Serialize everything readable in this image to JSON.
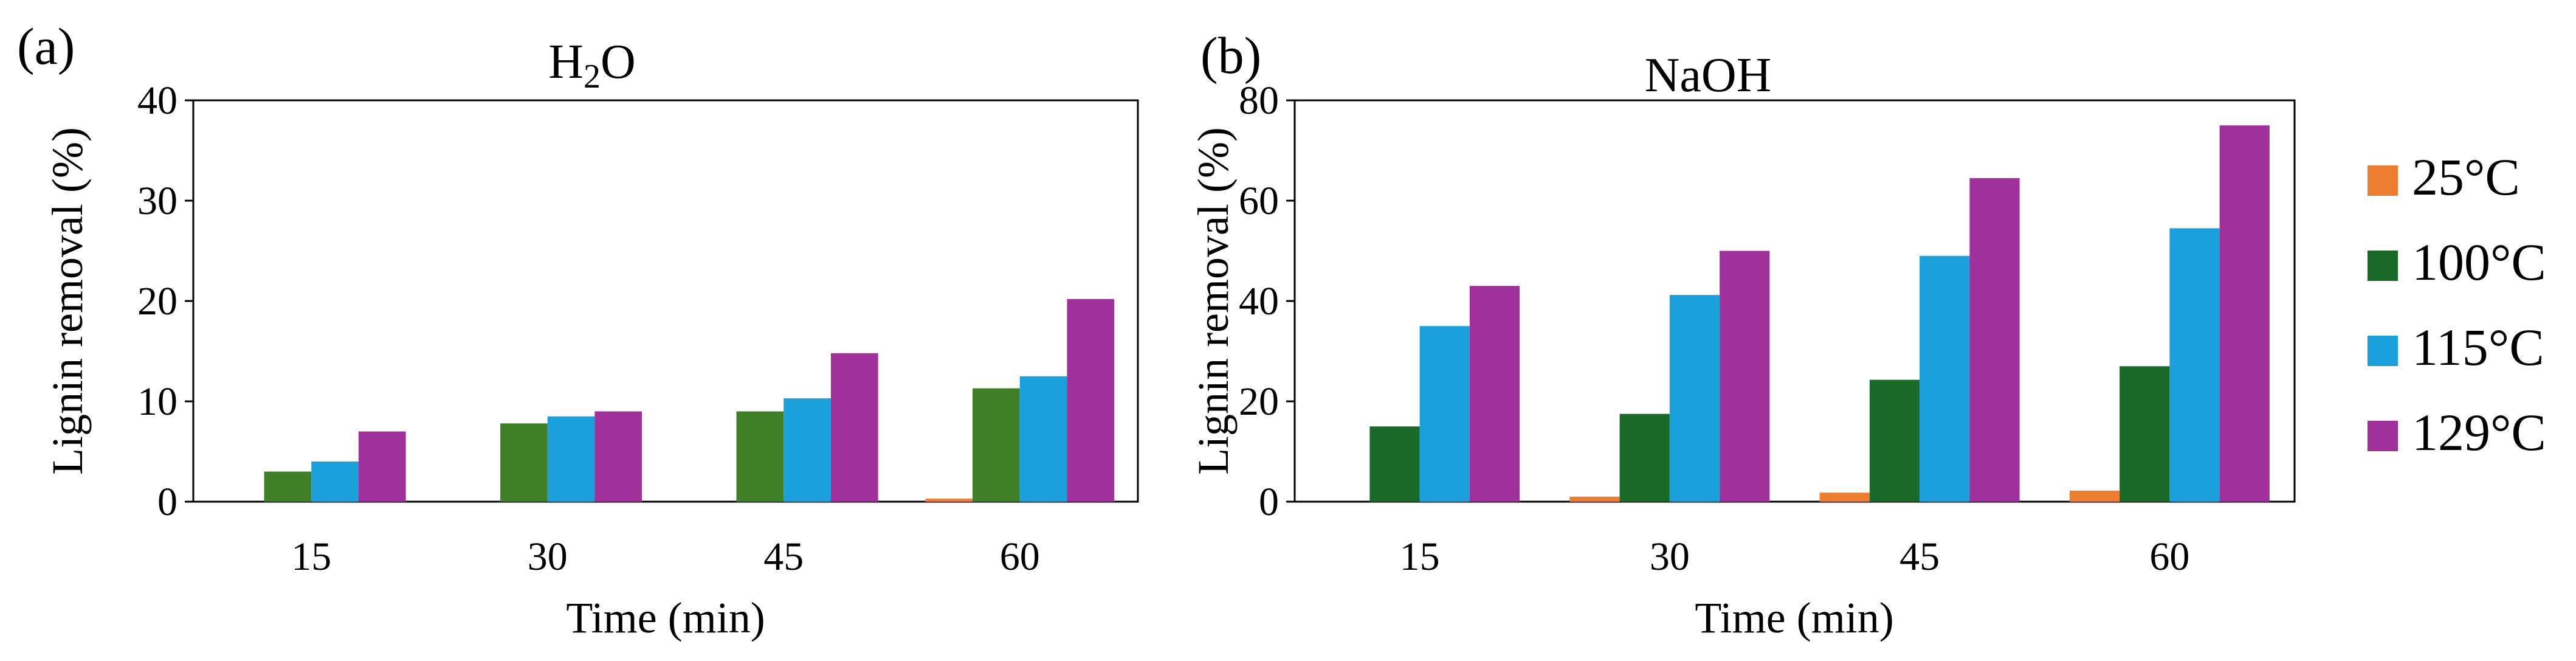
{
  "chart_data": [
    {
      "type": "bar",
      "panel_label": "(a)",
      "title_main": "H",
      "title_sub": "2",
      "title_tail": "O",
      "xlabel": "Time (min)",
      "ylabel": "Lignin removal  (%)",
      "ylim": [
        0,
        40
      ],
      "yticks": [
        "0",
        "10",
        "20",
        "30",
        "40"
      ],
      "categories": [
        "15",
        "30",
        "45",
        "60"
      ],
      "series": [
        {
          "name": "25°C",
          "color": "#ed7d31",
          "values": [
            0,
            0,
            0,
            0.3
          ]
        },
        {
          "name": "100°C",
          "color": "#3f7f25",
          "values": [
            3.0,
            7.8,
            9.0,
            11.3
          ]
        },
        {
          "name": "115°C",
          "color": "#1aa0db",
          "values": [
            4.0,
            8.5,
            10.3,
            12.5
          ]
        },
        {
          "name": "129°C",
          "color": "#a0309a",
          "values": [
            7.0,
            9.0,
            14.8,
            20.2
          ]
        }
      ]
    },
    {
      "type": "bar",
      "panel_label": "(b)",
      "title_main": "NaOH",
      "title_sub": "",
      "title_tail": "",
      "xlabel": "Time (min)",
      "ylabel": "Lignin removal  (%)",
      "ylim": [
        0,
        80
      ],
      "yticks": [
        "0",
        "20",
        "40",
        "60",
        "80"
      ],
      "categories": [
        "15",
        "30",
        "45",
        "60"
      ],
      "series": [
        {
          "name": "25°C",
          "color": "#ed7d31",
          "values": [
            0,
            1.0,
            1.8,
            2.2
          ]
        },
        {
          "name": "100°C",
          "color": "#1a6b2a",
          "values": [
            15.0,
            17.5,
            24.3,
            27.0
          ]
        },
        {
          "name": "115°C",
          "color": "#1aa0db",
          "values": [
            35.0,
            41.2,
            49.0,
            54.5
          ]
        },
        {
          "name": "129°C",
          "color": "#a0309a",
          "values": [
            43.0,
            50.0,
            64.5,
            75.0
          ]
        }
      ]
    }
  ],
  "legend": [
    {
      "label": "25°C",
      "color": "#ed7d31"
    },
    {
      "label": "100°C",
      "color": "#1a6b2a"
    },
    {
      "label": "115°C",
      "color": "#1aa0db"
    },
    {
      "label": "129°C",
      "color": "#a0309a"
    }
  ]
}
